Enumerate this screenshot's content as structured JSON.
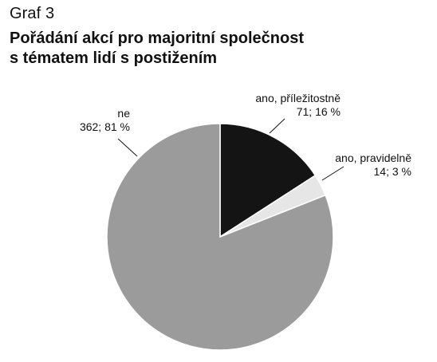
{
  "figure_label": "Graf 3",
  "title_lines": [
    "Pořádání akcí pro majoritní společnost",
    "s tématem lidí s postižením"
  ],
  "chart_data": {
    "type": "pie",
    "title": "Pořádání akcí pro majoritní společnost s tématem lidí s postižením",
    "slices": [
      {
        "label": "ano, příležitostně",
        "value": 71,
        "percent": 16,
        "value_label": "71; 16 %",
        "color": "#141414"
      },
      {
        "label": "ano, pravidelně",
        "value": 14,
        "percent": 3,
        "value_label": "14; 3 %",
        "color": "#e6e6e6"
      },
      {
        "label": "ne",
        "value": 362,
        "percent": 81,
        "value_label": "362; 81 %",
        "color": "#9b9b9b"
      }
    ]
  }
}
